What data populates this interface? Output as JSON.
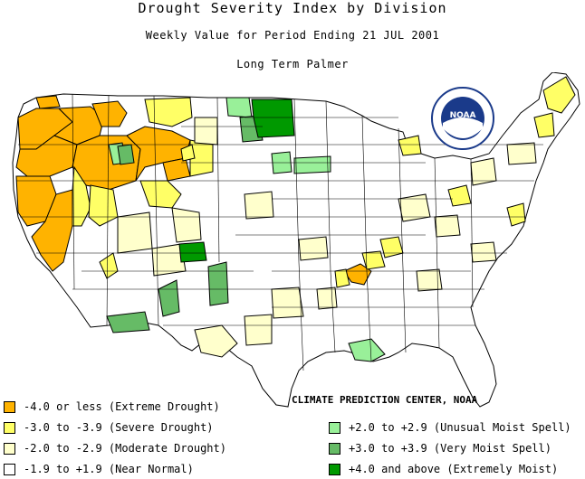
{
  "title": "Drought Severity Index by Division",
  "subtitle": "Weekly Value for Period Ending 21 JUL 2001",
  "index_name": "Long Term Palmer",
  "credit": "CLIMATE PREDICTION CENTER, NOAA",
  "logo": {
    "text": "NOAA",
    "icon": "noaa-logo"
  },
  "colors": {
    "extreme_drought": "#ffb300",
    "severe_drought": "#ffff66",
    "moderate_drought": "#ffffcc",
    "near_normal": "#ffffff",
    "unusual_moist": "#99f099",
    "very_moist": "#66bb66",
    "extremely_moist": "#009900",
    "outline": "#000000"
  },
  "legend": {
    "left": [
      {
        "label": "-4.0 or less (Extreme Drought)",
        "color": "#ffb300"
      },
      {
        "label": "-3.0 to -3.9 (Severe Drought)",
        "color": "#ffff66"
      },
      {
        "label": "-2.0 to -2.9 (Moderate Drought)",
        "color": "#ffffcc"
      },
      {
        "label": "-1.9 to +1.9 (Near Normal)",
        "color": "#ffffff"
      }
    ],
    "right": [
      {
        "label": "+2.0 to +2.9 (Unusual Moist Spell)",
        "color": "#99f099"
      },
      {
        "label": "+3.0 to +3.9 (Very Moist Spell)",
        "color": "#66bb66"
      },
      {
        "label": "+4.0 and above (Extremely Moist)",
        "color": "#009900"
      }
    ]
  }
}
